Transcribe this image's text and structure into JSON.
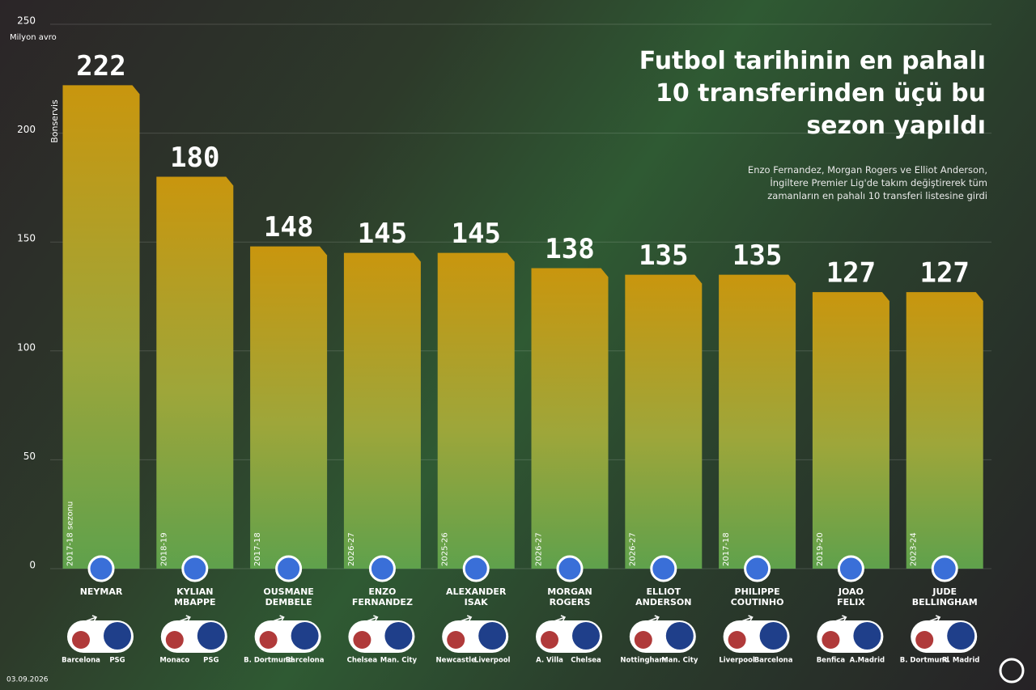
{
  "chart_data": {
    "type": "bar",
    "title": "Futbol tarihinin en pahalı 10 transferinden üçü bu sezon yapıldı",
    "subtitle": "Enzo Fernandez, Morgan Rogers ve Elliot Anderson, İngiltere Premier Lig'de takım değiştirerek tüm zamanların en pahalı 10 transferi listesine girdi",
    "y_unit": "Milyon avro",
    "y_label": "Bonservis",
    "date": "03.09.2026",
    "categories": [
      "NEYMAR",
      "KYLIAN MBAPPE",
      "OUSMANE DEMBELE",
      "ENZO FERNANDEZ",
      "ALEXANDER ISAK",
      "MORGAN ROGERS",
      "ELLIOT ANDERSON",
      "PHILIPPE COUTINHO",
      "JOAO FELIX",
      "JUDE BELLINGHAM"
    ],
    "values": [
      222,
      180,
      148,
      145,
      145,
      138,
      135,
      135,
      127,
      127
    ],
    "seasons": [
      "2017-18 sezonu",
      "2018-19",
      "2017-18",
      "2026-27",
      "2025-26",
      "2026-27",
      "2026-27",
      "2017-18",
      "2019-20",
      "2023-24"
    ],
    "from_clubs": [
      "Barcelona",
      "Monaco",
      "B. Dortmund",
      "Chelsea",
      "Newcastle",
      "A. Villa",
      "Nottingham",
      "Liverpool",
      "Benfica",
      "B. Dortmund"
    ],
    "to_clubs": [
      "PSG",
      "PSG",
      "Barcelona",
      "Man. City",
      "Liverpool",
      "Chelsea",
      "Man. City",
      "Barcelona",
      "A.Madrid",
      "R. Madrid"
    ],
    "ylim": [
      0,
      250
    ],
    "yticks": [
      0,
      50,
      100,
      150,
      200,
      250
    ],
    "grid": true
  }
}
